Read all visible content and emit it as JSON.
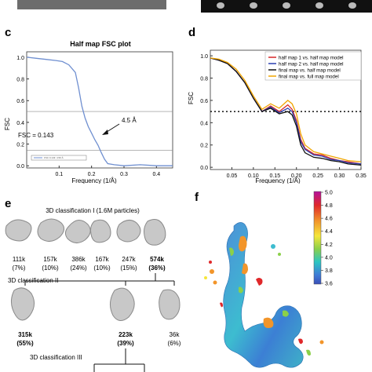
{
  "panels": {
    "c": {
      "letter": "c",
      "title": "Half map FSC plot",
      "ylabel": "FSC",
      "xlabel": "Frequency (1/Å)",
      "fsc_threshold_label": "FSC = 0.143",
      "resolution_label": "4.5 Å",
      "legend_text": "FSC 0.143: 4.50 Å"
    },
    "d": {
      "letter": "d",
      "ylabel": "FSC",
      "xlabel": "Frequency (1/Å)"
    },
    "e": {
      "letter": "e",
      "round1_label": "3D classification I (1.6M particles)",
      "round2_label": "3D classification II",
      "round3_label": "3D classification III",
      "round1_counts": [
        {
          "count": "111k",
          "pct": "(7%)",
          "bold": false
        },
        {
          "count": "157k",
          "pct": "(10%)",
          "bold": false
        },
        {
          "count": "386k",
          "pct": "(24%)",
          "bold": false
        },
        {
          "count": "167k",
          "pct": "(10%)",
          "bold": false
        },
        {
          "count": "247k",
          "pct": "(15%)",
          "bold": false
        },
        {
          "count": "574k",
          "pct": "(36%)",
          "bold": true
        }
      ],
      "round2_counts": [
        {
          "count": "315k",
          "pct": "(55%)",
          "bold": true
        },
        {
          "count": "223k",
          "pct": "(39%)",
          "bold": true
        },
        {
          "count": "36k",
          "pct": "(6%)",
          "bold": false
        }
      ]
    },
    "f": {
      "letter": "f",
      "colorbar_ticks": [
        "5.0",
        "4.8",
        "4.6",
        "4.4",
        "4.2",
        "4.0",
        "3.8",
        "3.6"
      ]
    }
  },
  "colors": {
    "fsc_blue": "#6f8fd0",
    "threshold_gray": "#8a8a8a",
    "map_gray": "#bdbdbd"
  },
  "chart_data": [
    {
      "type": "line",
      "title": "Half map FSC plot",
      "xlabel": "Frequency (1/Å)",
      "ylabel": "FSC",
      "xlim": [
        0,
        0.45
      ],
      "ylim": [
        -0.02,
        1.05
      ],
      "xticks": [
        "0.1",
        "0.2",
        "0.3",
        "0.4"
      ],
      "yticks": [
        "0.0",
        "0.2",
        "0.4",
        "0.6",
        "0.8",
        "1.0"
      ],
      "horizontal_lines": [
        0.143,
        0.5
      ],
      "annotations": [
        "FSC = 0.143",
        "4.5 Å"
      ],
      "series": [
        {
          "x": [
            0.0,
            0.03,
            0.06,
            0.09,
            0.11,
            0.13,
            0.15,
            0.16,
            0.17,
            0.18,
            0.19,
            0.2,
            0.21,
            0.22,
            0.23,
            0.24,
            0.25,
            0.27,
            0.3,
            0.35,
            0.4,
            0.45
          ],
          "y": [
            1.0,
            0.99,
            0.98,
            0.97,
            0.96,
            0.93,
            0.86,
            0.72,
            0.55,
            0.44,
            0.36,
            0.3,
            0.24,
            0.19,
            0.12,
            0.06,
            0.02,
            0.01,
            0.0,
            0.01,
            0.0,
            0.0
          ]
        }
      ]
    },
    {
      "type": "line",
      "xlabel": "Frequency (1/Å)",
      "ylabel": "FSC",
      "xlim": [
        0,
        0.35
      ],
      "ylim": [
        -0.02,
        1.05
      ],
      "xticks": [
        "0.05",
        "0.10",
        "0.15",
        "0.20",
        "0.25",
        "0.30",
        "0.35"
      ],
      "yticks": [
        "0.0",
        "0.2",
        "0.4",
        "0.6",
        "0.8",
        "1.0"
      ],
      "horizontal_lines": [
        0.5
      ],
      "legend_position": "top-right",
      "series": [
        {
          "name": "half map 1 vs. half map model",
          "color": "#d62728",
          "x": [
            0.0,
            0.02,
            0.04,
            0.06,
            0.08,
            0.1,
            0.12,
            0.14,
            0.16,
            0.18,
            0.19,
            0.2,
            0.21,
            0.22,
            0.24,
            0.26,
            0.28,
            0.3,
            0.32,
            0.35
          ],
          "y": [
            0.98,
            0.96,
            0.93,
            0.86,
            0.76,
            0.62,
            0.5,
            0.55,
            0.5,
            0.56,
            0.52,
            0.42,
            0.25,
            0.17,
            0.12,
            0.11,
            0.08,
            0.06,
            0.05,
            0.03
          ]
        },
        {
          "name": "half map 2 vs. half map model",
          "color": "#2b3fb0",
          "x": [
            0.0,
            0.02,
            0.04,
            0.06,
            0.08,
            0.1,
            0.12,
            0.14,
            0.16,
            0.18,
            0.19,
            0.2,
            0.21,
            0.22,
            0.24,
            0.26,
            0.28,
            0.3,
            0.32,
            0.35
          ],
          "y": [
            0.98,
            0.96,
            0.93,
            0.86,
            0.76,
            0.62,
            0.5,
            0.54,
            0.49,
            0.53,
            0.5,
            0.4,
            0.23,
            0.16,
            0.11,
            0.1,
            0.07,
            0.06,
            0.04,
            0.03
          ]
        },
        {
          "name": "final map vs. half map model",
          "color": "#111111",
          "x": [
            0.0,
            0.02,
            0.04,
            0.06,
            0.08,
            0.1,
            0.12,
            0.14,
            0.16,
            0.18,
            0.19,
            0.2,
            0.21,
            0.22,
            0.24,
            0.26,
            0.28,
            0.3,
            0.32,
            0.35
          ],
          "y": [
            0.98,
            0.96,
            0.93,
            0.86,
            0.76,
            0.62,
            0.5,
            0.53,
            0.48,
            0.5,
            0.47,
            0.37,
            0.2,
            0.13,
            0.09,
            0.08,
            0.06,
            0.05,
            0.03,
            0.02
          ]
        },
        {
          "name": "final map vs. full map model",
          "color": "#f0a500",
          "x": [
            0.0,
            0.02,
            0.04,
            0.06,
            0.08,
            0.1,
            0.12,
            0.14,
            0.16,
            0.18,
            0.19,
            0.2,
            0.21,
            0.22,
            0.24,
            0.26,
            0.28,
            0.3,
            0.32,
            0.35
          ],
          "y": [
            0.98,
            0.97,
            0.94,
            0.88,
            0.78,
            0.64,
            0.52,
            0.57,
            0.53,
            0.6,
            0.57,
            0.48,
            0.3,
            0.2,
            0.14,
            0.12,
            0.1,
            0.08,
            0.06,
            0.05
          ]
        }
      ]
    }
  ]
}
